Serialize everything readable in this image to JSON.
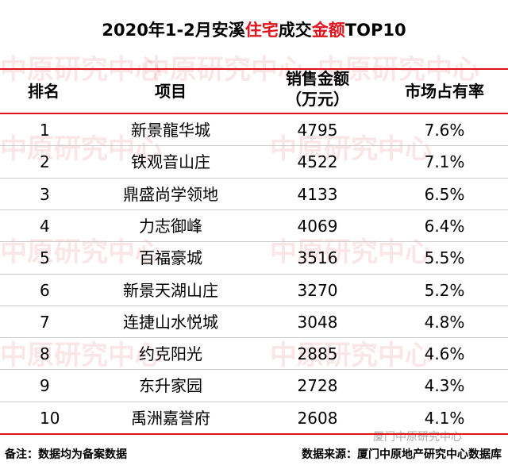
{
  "title": {
    "parts": [
      "2020年1-2月安溪",
      "住宅",
      "成交",
      "金额",
      "TOP10"
    ]
  },
  "watermark": {
    "text": "中原研究中心",
    "signature": "厦门中原研究中心"
  },
  "table": {
    "headers": [
      "排名",
      "项目",
      "销售金额",
      "（万元）",
      "市场占有率"
    ],
    "rows": [
      [
        1,
        "新景龍华城",
        4795,
        "7.6%"
      ],
      [
        2,
        "铁观音山庄",
        4522,
        "7.1%"
      ],
      [
        3,
        "鼎盛尚学领地",
        4133,
        "6.5%"
      ],
      [
        4,
        "力志御峰",
        4069,
        "6.4%"
      ],
      [
        5,
        "百福豪城",
        3516,
        "5.5%"
      ],
      [
        6,
        "新景天湖山庄",
        3270,
        "5.2%"
      ],
      [
        7,
        "连捷山水悦城",
        3048,
        "4.8%"
      ],
      [
        8,
        "约克阳光",
        2885,
        "4.6%"
      ],
      [
        9,
        "东升家园",
        2728,
        "4.3%"
      ],
      [
        10,
        "禹洲嘉誉府",
        2608,
        "4.1%"
      ]
    ]
  },
  "footer": {
    "note": "备注：数据均为备案数据",
    "source": "数据来源：厦门中原地产研究中心数据库"
  }
}
